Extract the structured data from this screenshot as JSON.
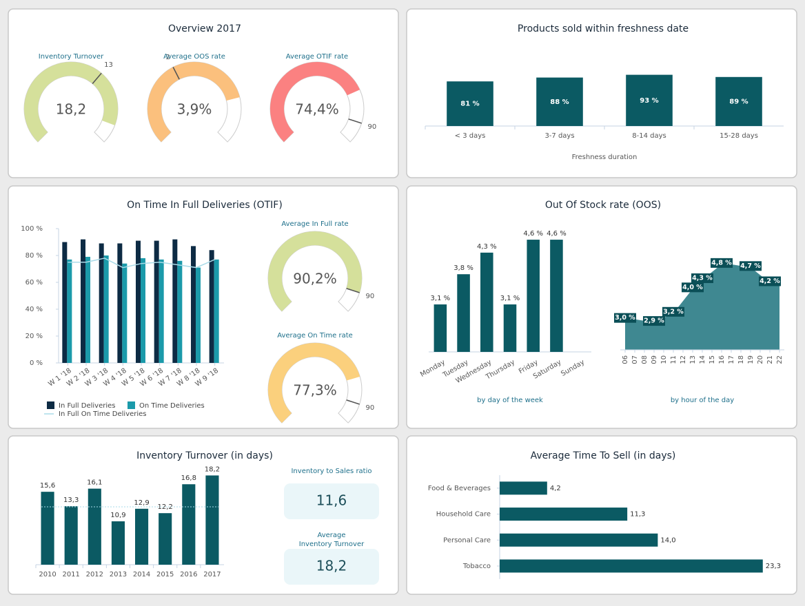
{
  "panels": [
    {
      "title": "Overview 2017"
    },
    {
      "title": "Products sold within freshness date"
    },
    {
      "title": "On Time In Full Deliveries (OTIF)"
    },
    {
      "title": "Out Of Stock rate (OOS)"
    },
    {
      "title": "Inventory Turnover (in days)"
    },
    {
      "title": "Average Time To Sell (in days)"
    }
  ],
  "chart_data": [
    {
      "type": "gauge",
      "title": "Inventory Turnover",
      "value": 18.2,
      "value_label": "18,2",
      "target": 13,
      "range": [
        0,
        20
      ],
      "color": "#d5e09b"
    },
    {
      "type": "gauge",
      "title": "Average OOS rate",
      "value": 3.9,
      "value_label": "3,9%",
      "target": 2,
      "range": [
        0,
        5
      ],
      "color": "#fbc07d"
    },
    {
      "type": "gauge",
      "title": "Average OTIF rate",
      "value": 74.4,
      "value_label": "74,4%",
      "target": 90,
      "range": [
        0,
        100
      ],
      "color": "#fb8181"
    },
    {
      "type": "bar",
      "categories": [
        "< 3 days",
        "3-7 days",
        "8-14 days",
        "15-28 days"
      ],
      "values": [
        81,
        88,
        93,
        89
      ],
      "value_labels": [
        "81 %",
        "88 %",
        "93 %",
        "89 %"
      ],
      "x_label": "Freshness duration",
      "ylim": [
        0,
        100
      ],
      "color": "#0b5a63"
    },
    {
      "type": "grouped_bar_line",
      "categories": [
        "W 1 '18",
        "W 2 '18",
        "W 3 '18",
        "W 4 '18",
        "W 5 '18",
        "W 6 '18",
        "W 7 '18",
        "W 8 '18",
        "W 9 '18"
      ],
      "ylim": [
        0,
        100
      ],
      "yticks": [
        {
          "value": 0,
          "label": "0 %"
        },
        {
          "value": 20,
          "label": "20 %"
        },
        {
          "value": 40,
          "label": "40 %"
        },
        {
          "value": 60,
          "label": "60 %"
        },
        {
          "value": 80,
          "label": "80 %"
        },
        {
          "value": 100,
          "label": "100 %"
        }
      ],
      "series": [
        {
          "name": "In Full Deliveries",
          "color": "#0d2b44",
          "values": [
            90,
            92,
            89,
            89,
            91,
            91,
            92,
            87,
            84
          ]
        },
        {
          "name": "On Time Deliveries",
          "color": "#1b9aaa",
          "values": [
            77,
            79,
            80,
            74,
            78,
            77,
            76,
            71,
            77
          ]
        },
        {
          "name": "In Full On Time Deliveries",
          "type": "line",
          "color": "#a9dbe8",
          "values": [
            75,
            75,
            78,
            71,
            74,
            75,
            73,
            71,
            77
          ]
        }
      ],
      "legend": "bottom"
    },
    {
      "type": "gauge",
      "title": "Average In Full rate",
      "value": 90.2,
      "value_label": "90,2%",
      "target": 90,
      "range": [
        0,
        100
      ],
      "color": "#d5e09b"
    },
    {
      "type": "gauge",
      "title": "Average On Time rate",
      "value": 77.3,
      "value_label": "77,3%",
      "target": 90,
      "range": [
        0,
        100
      ],
      "color": "#fbd07d"
    },
    {
      "type": "bar",
      "categories": [
        "Monday",
        "Tuesday",
        "Wednesday",
        "Thursday",
        "Friday",
        "Saturday",
        "Sunday"
      ],
      "values": [
        3.1,
        3.8,
        4.3,
        3.1,
        4.6,
        4.6,
        null
      ],
      "value_labels": [
        "3,1 %",
        "3,8 %",
        "4,3 %",
        "3,1 %",
        "4,6 %",
        "4,6 %",
        null
      ],
      "x_label": "by day of the week",
      "ylim": [
        2,
        5
      ],
      "color": "#0b5a63"
    },
    {
      "type": "area",
      "categories": [
        "06",
        "07",
        "08",
        "09",
        "10",
        "11",
        "12",
        "13",
        "14",
        "15",
        "16",
        "17",
        "18",
        "19",
        "20",
        "21",
        "22"
      ],
      "values": [
        3.0,
        3.0,
        2.95,
        2.9,
        3.05,
        3.2,
        3.6,
        4.0,
        4.3,
        4.55,
        4.8,
        4.8,
        4.75,
        4.7,
        4.45,
        4.2,
        4.1
      ],
      "value_labels": [
        "3,0 %",
        null,
        null,
        "2,9 %",
        null,
        "3,2 %",
        null,
        "4,0 %",
        "4,3 %",
        null,
        "4,8 %",
        null,
        null,
        "4,7 %",
        null,
        "4,2 %",
        null
      ],
      "x_label": "by hour of the day",
      "ylim": [
        2,
        5
      ],
      "color": "#3f8891"
    },
    {
      "type": "bar",
      "categories": [
        "2010",
        "2011",
        "2012",
        "2013",
        "2014",
        "2015",
        "2016",
        "2017"
      ],
      "values": [
        15.6,
        13.3,
        16.1,
        10.9,
        12.9,
        12.2,
        16.8,
        18.2
      ],
      "value_labels": [
        "15,6",
        "13,3",
        "16,1",
        "10,9",
        "12,9",
        "12,2",
        "16,8",
        "18,2"
      ],
      "reference_line": 13.2,
      "ylim": [
        4,
        20
      ],
      "color": "#0b5a63"
    },
    {
      "type": "kpi",
      "title": "Inventory to Sales ratio",
      "value": 11.6,
      "value_label": "11,6"
    },
    {
      "type": "kpi",
      "title": "Average\nInventory Turnover",
      "value": 18.2,
      "value_label": "18,2"
    },
    {
      "type": "hbar",
      "categories": [
        "Food & Beverages",
        "Household Care",
        "Personal Care",
        "Tobacco"
      ],
      "values": [
        4.2,
        11.3,
        14.0,
        23.3
      ],
      "value_labels": [
        "4,2",
        "11,3",
        "14,0",
        "23,3"
      ],
      "xlim": [
        0,
        26
      ],
      "color": "#0b5a63"
    }
  ]
}
